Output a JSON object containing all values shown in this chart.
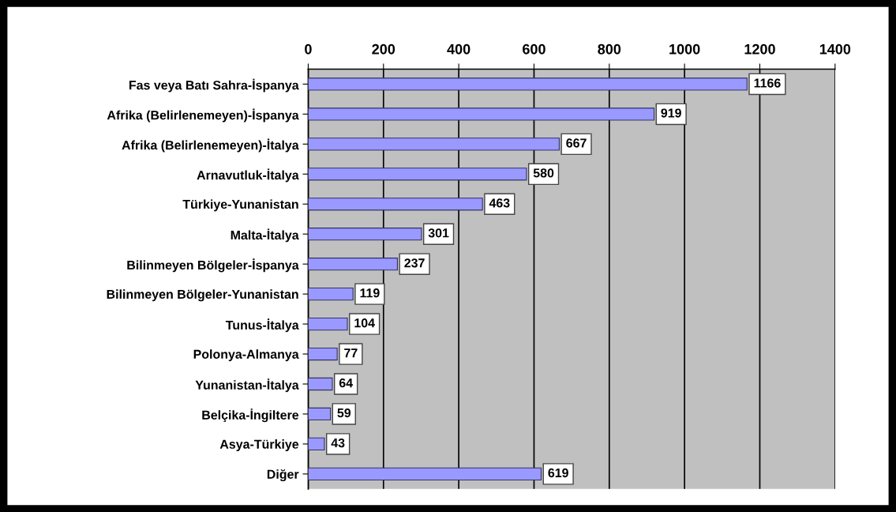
{
  "chart_data": {
    "type": "bar",
    "orientation": "horizontal",
    "categories": [
      "Fas veya Batı Sahra-İspanya",
      "Afrika (Belirlenemeyen)-İspanya",
      "Afrika (Belirlenemeyen)-İtalya",
      "Arnavutluk-İtalya",
      "Türkiye-Yunanistan",
      "Malta-İtalya",
      "Bilinmeyen Bölgeler-İspanya",
      "Bilinmeyen Bölgeler-Yunanistan",
      "Tunus-İtalya",
      "Polonya-Almanya",
      "Yunanistan-İtalya",
      "Belçika-İngiltere",
      "Asya-Türkiye",
      "Diğer"
    ],
    "values": [
      1166,
      919,
      667,
      580,
      463,
      301,
      237,
      119,
      104,
      77,
      64,
      59,
      43,
      619
    ],
    "color": "#9999ff",
    "xlim": [
      0,
      1400
    ],
    "xticks": [
      0,
      200,
      400,
      600,
      800,
      1000,
      1200,
      1400
    ],
    "grid": "x",
    "data_labels": true,
    "legend": false
  }
}
